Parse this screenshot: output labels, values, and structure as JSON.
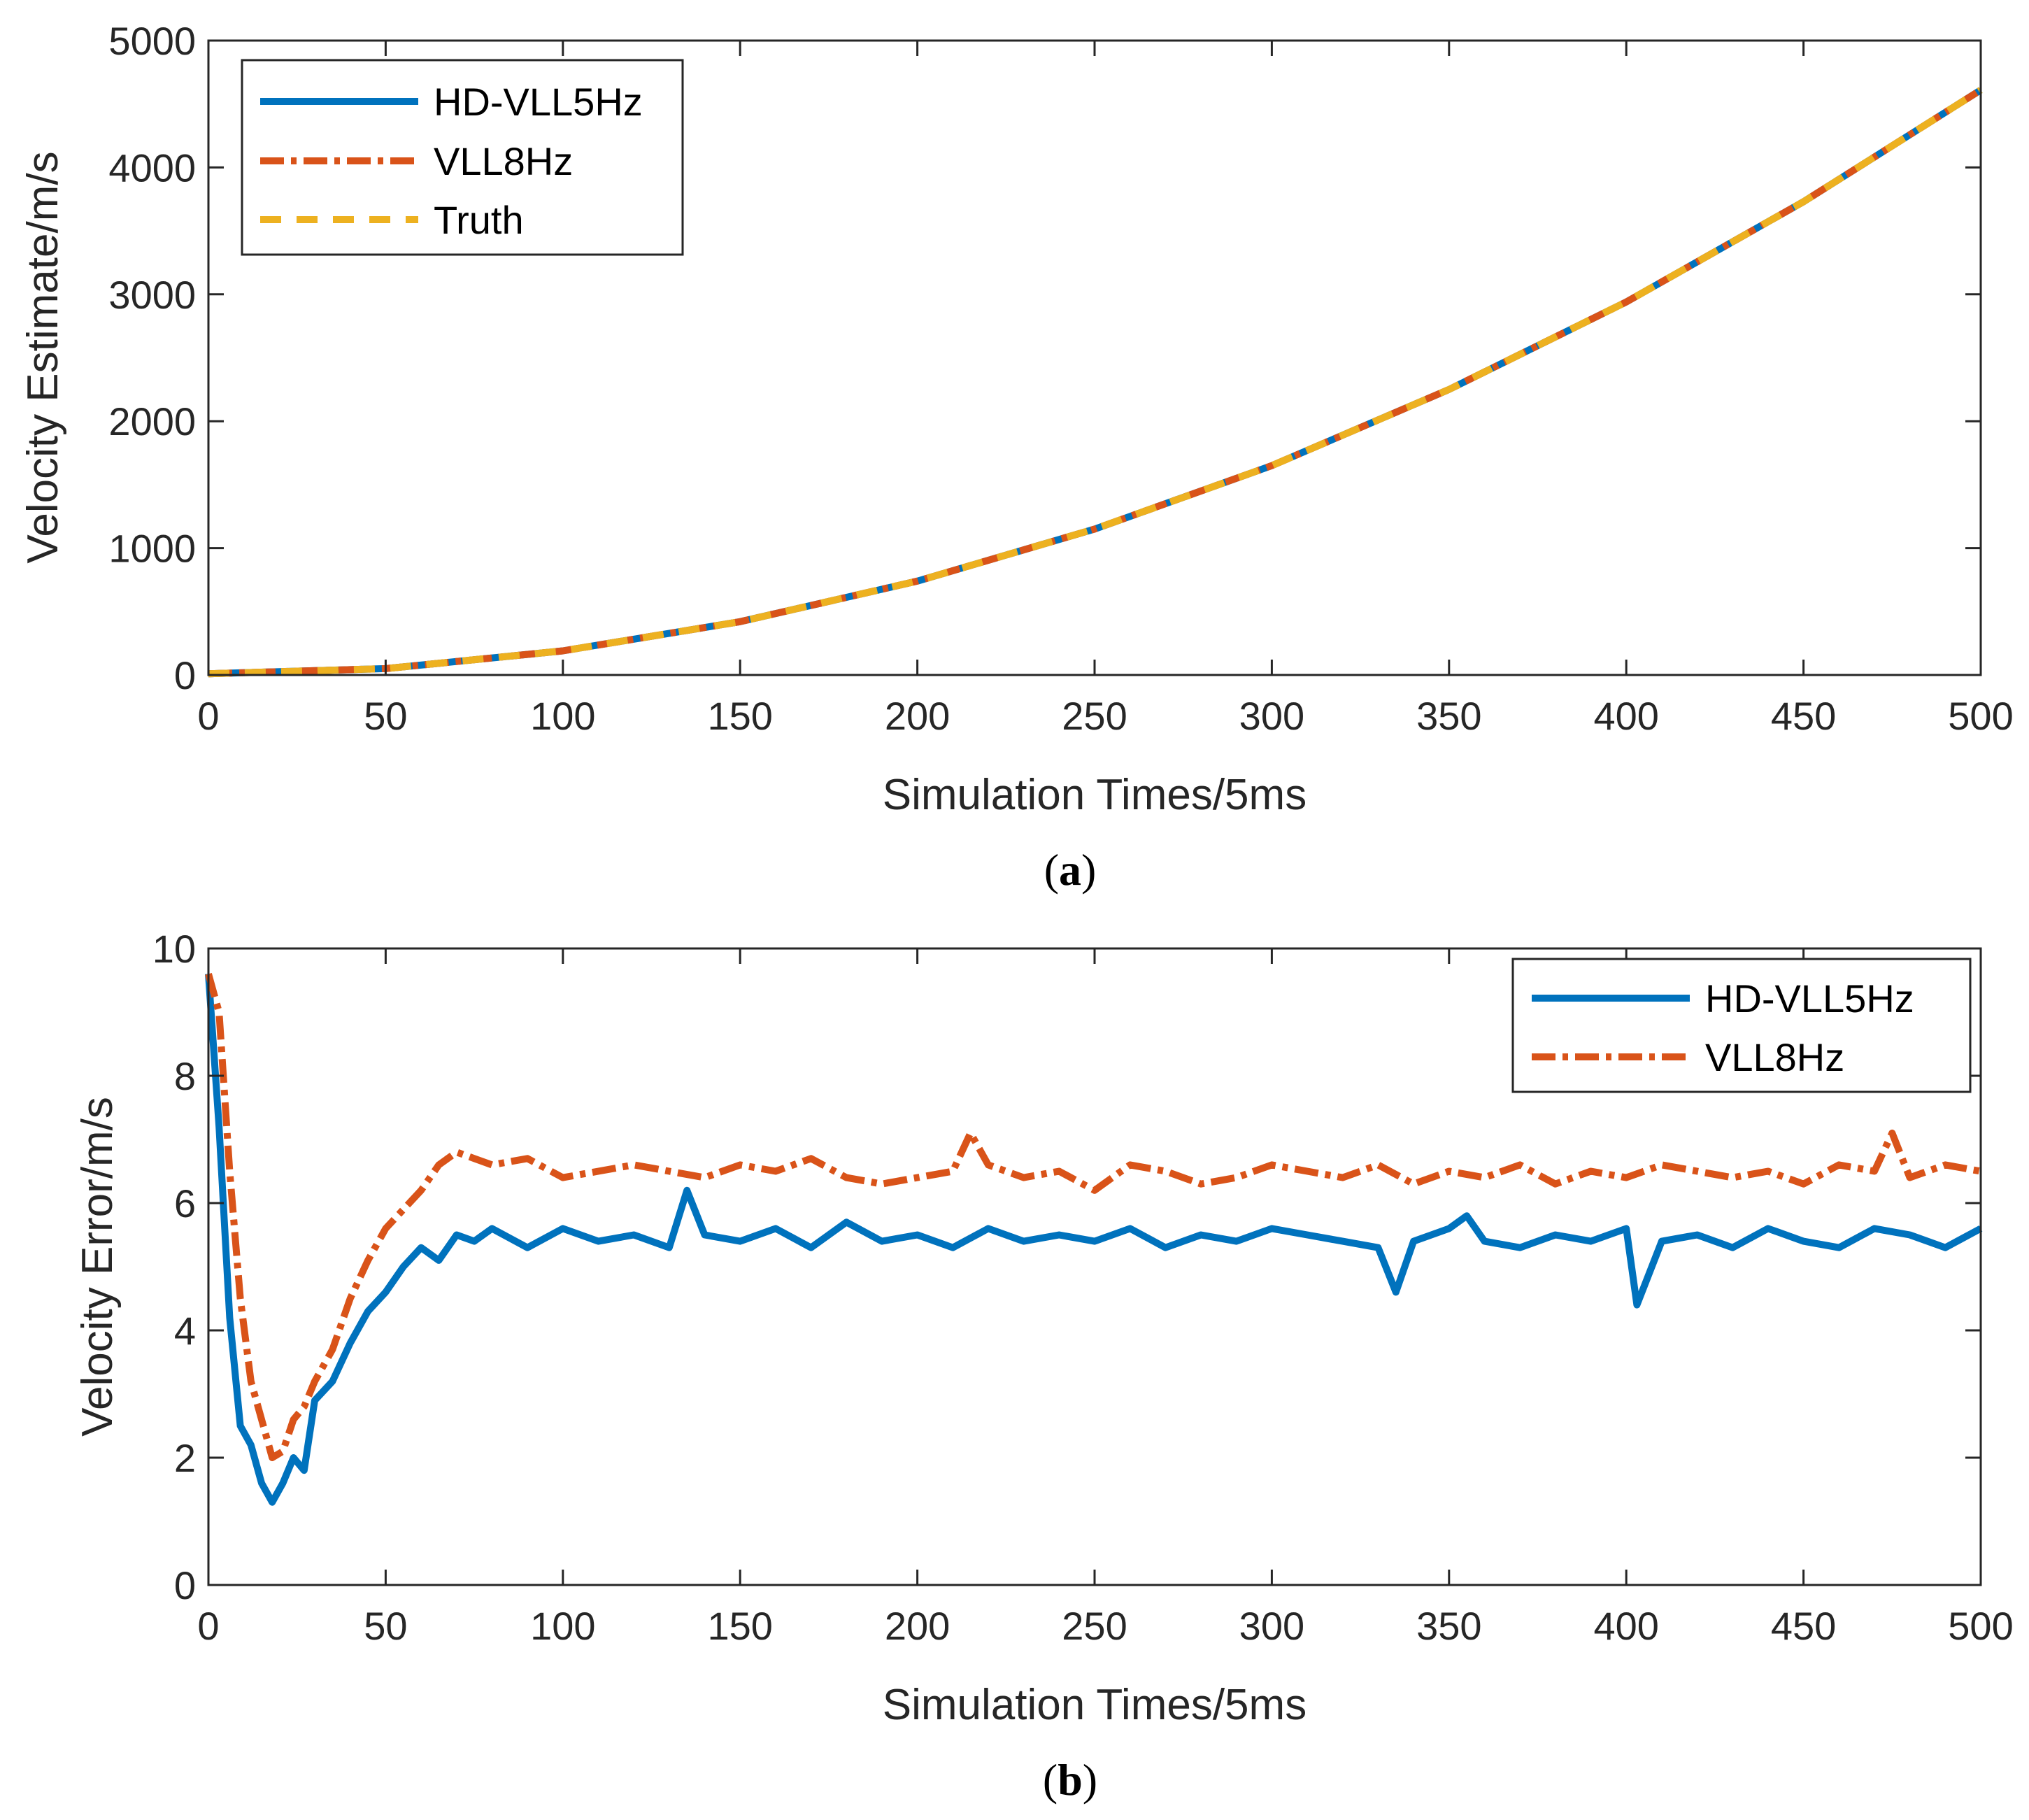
{
  "chart_data": [
    {
      "id": "a",
      "type": "line",
      "caption_letter": "a",
      "xlabel": "Simulation Times/5ms",
      "ylabel": "Velocity Estimate/m/s",
      "xlim": [
        0,
        500
      ],
      "ylim": [
        0,
        5000
      ],
      "xticks": [
        0,
        50,
        100,
        150,
        200,
        250,
        300,
        350,
        400,
        450,
        500
      ],
      "yticks": [
        0,
        1000,
        2000,
        3000,
        4000,
        5000
      ],
      "legend_position": "top-left",
      "series": [
        {
          "name": "HD-VLL5Hz",
          "color": "#0072BD",
          "style": "solid",
          "x": [
            0,
            50,
            100,
            150,
            200,
            250,
            300,
            350,
            400,
            450,
            500
          ],
          "y": [
            10,
            50,
            190,
            420,
            740,
            1150,
            1650,
            2250,
            2940,
            3730,
            4610
          ]
        },
        {
          "name": "VLL8Hz",
          "color": "#D95319",
          "style": "dashdot",
          "x": [
            0,
            50,
            100,
            150,
            200,
            250,
            300,
            350,
            400,
            450,
            500
          ],
          "y": [
            10,
            50,
            190,
            420,
            740,
            1150,
            1650,
            2250,
            2940,
            3730,
            4610
          ]
        },
        {
          "name": "Truth",
          "color": "#EDB120",
          "style": "dashed",
          "x": [
            0,
            50,
            100,
            150,
            200,
            250,
            300,
            350,
            400,
            450,
            500
          ],
          "y": [
            10,
            50,
            190,
            420,
            740,
            1150,
            1650,
            2250,
            2940,
            3730,
            4610
          ]
        }
      ]
    },
    {
      "id": "b",
      "type": "line",
      "caption_letter": "b",
      "xlabel": "Simulation Times/5ms",
      "ylabel": "Velocity Error/m/s",
      "xlim": [
        0,
        500
      ],
      "ylim": [
        0,
        10
      ],
      "xticks": [
        0,
        50,
        100,
        150,
        200,
        250,
        300,
        350,
        400,
        450,
        500
      ],
      "yticks": [
        0,
        2,
        4,
        6,
        8,
        10
      ],
      "legend_position": "top-right",
      "series": [
        {
          "name": "HD-VLL5Hz",
          "color": "#0072BD",
          "style": "solid",
          "x": [
            0,
            3,
            6,
            9,
            12,
            15,
            18,
            21,
            24,
            27,
            30,
            35,
            40,
            45,
            50,
            55,
            60,
            65,
            70,
            75,
            80,
            90,
            100,
            110,
            120,
            130,
            135,
            140,
            150,
            160,
            170,
            180,
            190,
            200,
            210,
            220,
            230,
            240,
            250,
            260,
            270,
            280,
            290,
            300,
            310,
            320,
            330,
            335,
            340,
            350,
            355,
            360,
            370,
            380,
            390,
            400,
            403,
            410,
            420,
            430,
            440,
            450,
            460,
            470,
            480,
            490,
            500
          ],
          "y": [
            9.6,
            7.2,
            4.2,
            2.5,
            2.2,
            1.6,
            1.3,
            1.6,
            2.0,
            1.8,
            2.9,
            3.2,
            3.8,
            4.3,
            4.6,
            5.0,
            5.3,
            5.1,
            5.5,
            5.4,
            5.6,
            5.3,
            5.6,
            5.4,
            5.5,
            5.3,
            6.2,
            5.5,
            5.4,
            5.6,
            5.3,
            5.7,
            5.4,
            5.5,
            5.3,
            5.6,
            5.4,
            5.5,
            5.4,
            5.6,
            5.3,
            5.5,
            5.4,
            5.6,
            5.5,
            5.4,
            5.3,
            4.6,
            5.4,
            5.6,
            5.8,
            5.4,
            5.3,
            5.5,
            5.4,
            5.6,
            4.4,
            5.4,
            5.5,
            5.3,
            5.6,
            5.4,
            5.3,
            5.6,
            5.5,
            5.3,
            5.6
          ]
        },
        {
          "name": "VLL8Hz",
          "color": "#D95319",
          "style": "dashdot",
          "x": [
            0,
            3,
            6,
            9,
            12,
            15,
            18,
            21,
            24,
            27,
            30,
            35,
            40,
            45,
            50,
            55,
            60,
            65,
            70,
            75,
            80,
            90,
            100,
            110,
            120,
            130,
            140,
            150,
            160,
            170,
            180,
            190,
            200,
            210,
            215,
            220,
            230,
            240,
            250,
            260,
            270,
            280,
            290,
            300,
            310,
            320,
            330,
            340,
            350,
            360,
            370,
            380,
            390,
            400,
            410,
            420,
            430,
            440,
            450,
            460,
            470,
            475,
            480,
            490,
            500
          ],
          "y": [
            9.6,
            9.0,
            6.5,
            4.5,
            3.2,
            2.6,
            2.0,
            2.1,
            2.6,
            2.8,
            3.2,
            3.7,
            4.5,
            5.1,
            5.6,
            5.9,
            6.2,
            6.6,
            6.8,
            6.7,
            6.6,
            6.7,
            6.4,
            6.5,
            6.6,
            6.5,
            6.4,
            6.6,
            6.5,
            6.7,
            6.4,
            6.3,
            6.4,
            6.5,
            7.1,
            6.6,
            6.4,
            6.5,
            6.2,
            6.6,
            6.5,
            6.3,
            6.4,
            6.6,
            6.5,
            6.4,
            6.6,
            6.3,
            6.5,
            6.4,
            6.6,
            6.3,
            6.5,
            6.4,
            6.6,
            6.5,
            6.4,
            6.5,
            6.3,
            6.6,
            6.5,
            7.1,
            6.4,
            6.6,
            6.5
          ]
        }
      ]
    }
  ]
}
